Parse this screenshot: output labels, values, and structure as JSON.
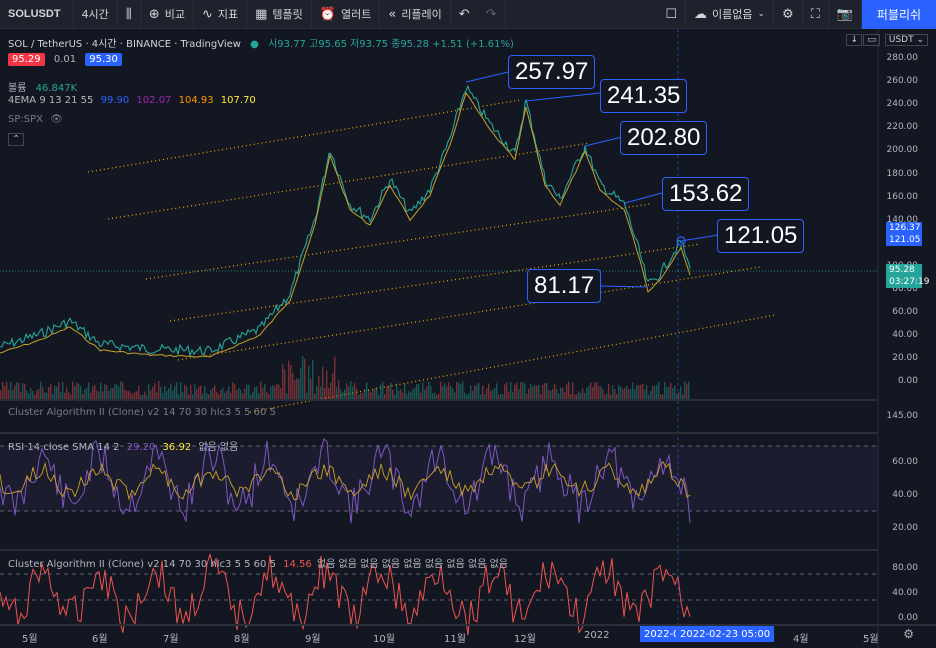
{
  "toolbar": {
    "symbol": "SOLUSDT",
    "interval": "4시간",
    "compare": "비교",
    "indicators": "지표",
    "templates": "템플릿",
    "alerts": "열러트",
    "replay": "리플레이",
    "unnamed": "이름없음",
    "publish": "퍼블리쉬"
  },
  "header": {
    "title": "SOL / TetherUS · 4시간 · BINANCE · TradingView",
    "ohlc": "시93.77 고95.65 저93.75 종95.28 +1.51 (+1.61%)",
    "bid": "95.29",
    "spread": "0.01",
    "ask": "95.30",
    "volume_label": "볼륨",
    "volume_value": "46.847K",
    "ema_label": "4EMA 9 13 21 55",
    "ema_values": [
      "99.90",
      "102.07",
      "104.93",
      "107.70"
    ],
    "spx": "SP:SPX",
    "currency": "USDT"
  },
  "callouts": [
    "257.97",
    "241.35",
    "202.80",
    "153.62",
    "121.05",
    "81.17"
  ],
  "price_axis": [
    "280.00",
    "260.00",
    "240.00",
    "220.00",
    "200.00",
    "180.00",
    "160.00",
    "140.00",
    "120.00",
    "100.00",
    "80.00",
    "60.00",
    "40.00",
    "20.00",
    "0.00"
  ],
  "price_tags": {
    "upper1": "126.37",
    "upper2": "121.05",
    "last": "95.28",
    "countdown": "03:27:19"
  },
  "pane1": {
    "label": "Cluster Algorithm II (Clone) v2 14 70 30 hlc3 5 5 60 5",
    "axis": "145.00"
  },
  "rsi": {
    "label": "RSI 14 close SMA 14 2",
    "v1": "29.20",
    "v2": "36.92",
    "extra": "없음 없음",
    "axis": [
      "60.00",
      "40.00",
      "20.00"
    ]
  },
  "cluster": {
    "label": "Cluster Algorithm II (Clone) v2 14 70 30 hlc3 5 5 60 5",
    "value": "14.56",
    "extra": "없음 없음 없음 없음 없음 없음 없음 없음 없음",
    "axis": [
      "80.00",
      "40.00",
      "0.00"
    ]
  },
  "time_axis": [
    "5월",
    "6월",
    "7월",
    "8월",
    "9월",
    "10월",
    "11월",
    "12월",
    "2022",
    "4월",
    "5월"
  ],
  "date_tag": "2022-0",
  "crosshair_time": "2022-02-23   05:00",
  "colors": {
    "accent": "#2962ff",
    "bid": "#f23645",
    "ask": "#2962ff",
    "up": "#26a69a",
    "down": "#ef5350",
    "rsi": "#7e57c2"
  }
}
